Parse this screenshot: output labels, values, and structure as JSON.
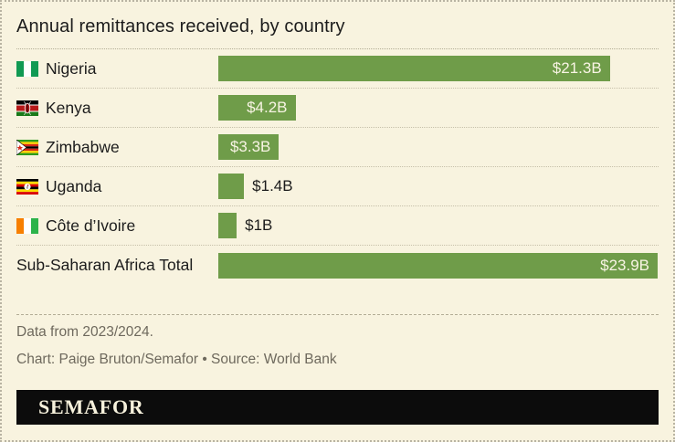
{
  "title": "Annual remittances received, by country",
  "chart_data": {
    "type": "bar",
    "orientation": "horizontal",
    "unit": "USD billions",
    "max_value": 23.9,
    "bar_color": "#6f9c49",
    "categories": [
      "Nigeria",
      "Kenya",
      "Zimbabwe",
      "Uganda",
      "Côte d’Ivoire",
      "Sub-Saharan Africa Total"
    ],
    "values": [
      21.3,
      4.2,
      3.3,
      1.4,
      1.0,
      23.9
    ],
    "rows": [
      {
        "label": "Nigeria",
        "value": 21.3,
        "display": "$21.3B",
        "flag": "nigeria-flag-icon",
        "value_position": "inside"
      },
      {
        "label": "Kenya",
        "value": 4.2,
        "display": "$4.2B",
        "flag": "kenya-flag-icon",
        "value_position": "inside"
      },
      {
        "label": "Zimbabwe",
        "value": 3.3,
        "display": "$3.3B",
        "flag": "zimbabwe-flag-icon",
        "value_position": "inside"
      },
      {
        "label": "Uganda",
        "value": 1.4,
        "display": "$1.4B",
        "flag": "uganda-flag-icon",
        "value_position": "outside"
      },
      {
        "label": "Côte d’Ivoire",
        "value": 1.0,
        "display": "$1B",
        "flag": "cote-divoire-flag-icon",
        "value_position": "outside"
      },
      {
        "label": "Sub-Saharan Africa Total",
        "value": 23.9,
        "display": "$23.9B",
        "flag": null,
        "value_position": "inside"
      }
    ]
  },
  "footer": {
    "note": "Data from 2023/2024.",
    "credit": "Chart: Paige Bruton/Semafor • Source: World Bank"
  },
  "logo": {
    "text": "SEMAFOR"
  },
  "colors": {
    "background": "#f8f3df",
    "bar": "#6f9c49",
    "text": "#1c1c1c",
    "muted_text": "#6e695d",
    "logo_background": "#0c0c0c",
    "logo_text": "#f6f1dc"
  }
}
